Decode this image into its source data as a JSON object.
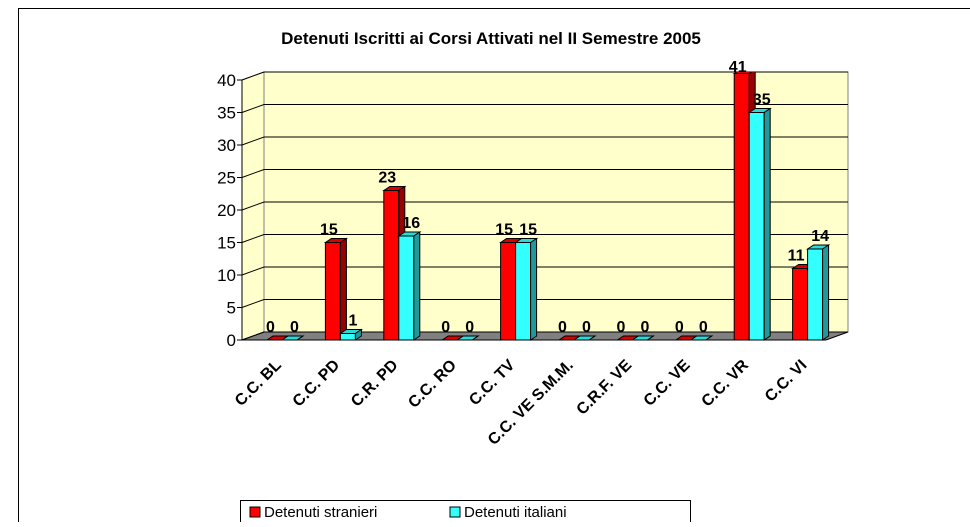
{
  "chart_data": {
    "type": "bar3d",
    "title": "Detenuti Iscritti ai Corsi Attivati nel II Semestre 2005",
    "categories": [
      "C.C. BL",
      "C.C. PD",
      "C.R. PD",
      "C.C. RO",
      "C.C. TV",
      "C.C. VE S.M.M.",
      "C.R.F. VE",
      "C.C. VE",
      "C.C. VR",
      "C.C. VI"
    ],
    "series": [
      {
        "name": "Detenuti stranieri",
        "color": "#ff0000",
        "values": [
          0,
          15,
          23,
          0,
          15,
          0,
          0,
          0,
          41,
          11
        ]
      },
      {
        "name": "Detenuti italiani",
        "color": "#33ffff",
        "values": [
          0,
          1,
          16,
          0,
          15,
          0,
          0,
          0,
          35,
          14
        ]
      }
    ],
    "ylim": [
      0,
      40
    ],
    "yticks": [
      0,
      5,
      10,
      15,
      20,
      25,
      30,
      35,
      40
    ],
    "grid": true,
    "legend": "bottom"
  }
}
